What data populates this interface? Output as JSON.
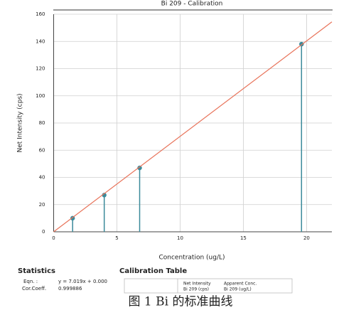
{
  "chart_data": {
    "type": "scatter",
    "title": "Bi 209   -   Calibration",
    "xlabel": "Concentration (ug/L)",
    "ylabel": "Net Intensity (cps)",
    "xlim": [
      0,
      22
    ],
    "ylim": [
      0,
      160
    ],
    "xticks": [
      0,
      5,
      10,
      15,
      20
    ],
    "yticks": [
      0,
      20,
      40,
      60,
      80,
      100,
      120,
      140,
      160
    ],
    "grid": true,
    "series": [
      {
        "mode": "stem",
        "color": "#3a8a9a",
        "x": [
          1.5,
          4.0,
          6.8,
          19.6
        ],
        "values": [
          10,
          27,
          47,
          138
        ]
      },
      {
        "mode": "line",
        "color": "#e8735a",
        "x": [
          0,
          22
        ],
        "values": [
          0,
          154.4
        ]
      }
    ]
  },
  "statistics": {
    "heading": "Statistics",
    "rows": [
      [
        "Eqn. :",
        "y = 7.019x + 0.000"
      ],
      [
        "Cor.Coeff.",
        "0.999886"
      ]
    ]
  },
  "calibration_table": {
    "heading": "Calibration Table",
    "headers": [
      [
        "Net Intensity",
        "Bi 209 (cps)"
      ],
      [
        "Apparent Conc.",
        "Bi 209 (ug/L)"
      ]
    ]
  },
  "caption": "图 1    Bi 的标准曲线"
}
